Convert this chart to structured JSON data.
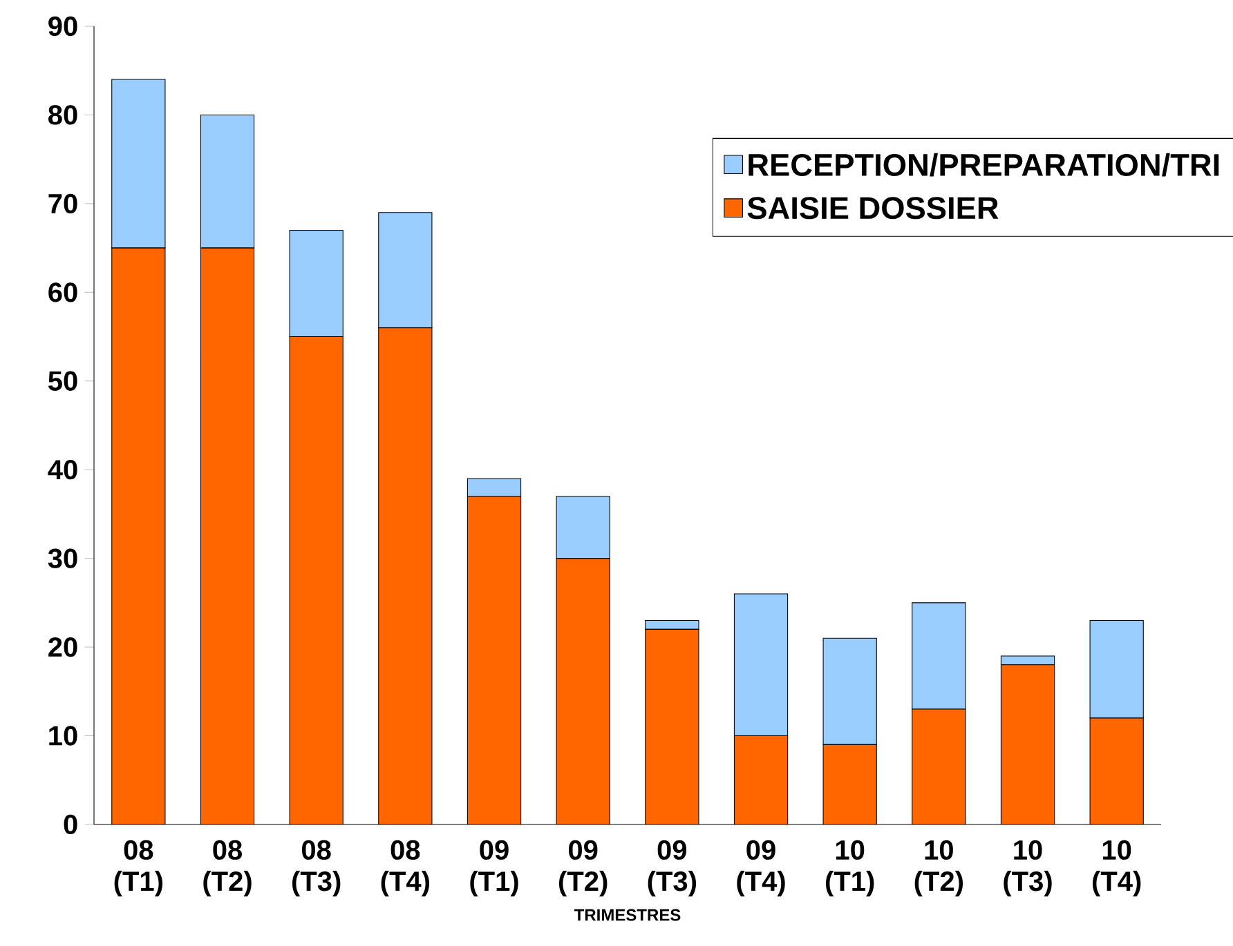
{
  "chart_data": {
    "type": "bar",
    "stacked": true,
    "xlabel": "TRIMESTRES",
    "categories": [
      "08 (T1)",
      "08 (T2)",
      "08 (T3)",
      "08 (T4)",
      "09 (T1)",
      "09 (T2)",
      "09 (T3)",
      "09 (T4)",
      "10 (T1)",
      "10 (T2)",
      "10 (T3)",
      "10 (T4)"
    ],
    "series": [
      {
        "name": "SAISIE DOSSIER",
        "color": "#ff6600",
        "values": [
          65,
          65,
          55,
          56,
          37,
          30,
          22,
          10,
          9,
          13,
          18,
          12
        ]
      },
      {
        "name": "RECEPTION/PREPARATION/TRI",
        "color": "#99ccff",
        "values": [
          19,
          15,
          12,
          13,
          2,
          7,
          1,
          16,
          12,
          12,
          1,
          11
        ]
      }
    ],
    "ylim": [
      0,
      90
    ],
    "yticks": [
      0,
      10,
      20,
      30,
      40,
      50,
      60,
      70,
      80,
      90
    ],
    "grid": false,
    "legend": "top right"
  }
}
